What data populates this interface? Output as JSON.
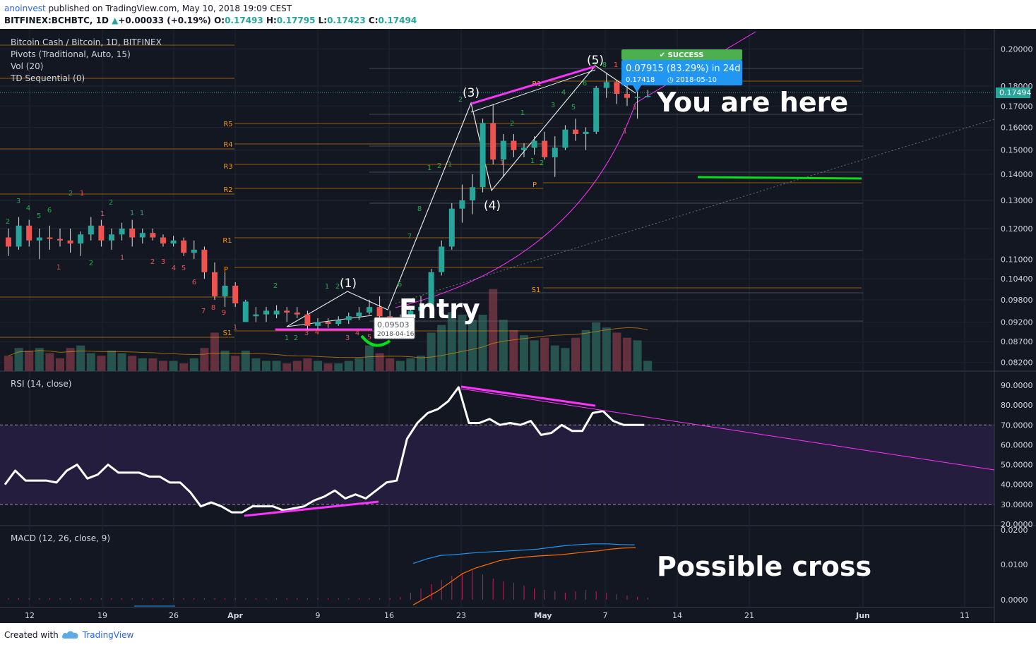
{
  "header": {
    "author": "anoinvest",
    "published": "published on TradingView.com, May 10, 2018 19:09 CEST",
    "symbol": "BITFINEX:BCHBTC, 1D",
    "change": "+0.00033 (+0.19%)",
    "ohlc": {
      "o_label": "O:",
      "o": "0.17493",
      "h_label": "H:",
      "h": "0.17795",
      "l_label": "L:",
      "l": "0.17423",
      "c_label": "C:",
      "c": "0.17494"
    }
  },
  "footer": {
    "created_with": "Created with",
    "brand": "TradingView"
  },
  "colors": {
    "background": "#131722",
    "up": "#26a69a",
    "down": "#ef5350",
    "annotation": "#ff33ff",
    "rsi": "#ffffff",
    "success": "#4caf50",
    "callout": "#2196f3",
    "pivot": "#ff9800"
  },
  "chart_data": [
    {
      "type": "candlestick",
      "pane": "price",
      "title": "Bitcoin Cash / Bitcoin, 1D, BITFINEX",
      "indicators": [
        "Pivots (Traditional, Auto, 15)",
        "Vol (20)",
        "TD Sequential (0)"
      ],
      "last_price": "0.17494",
      "y_ticks": [
        "0.20000",
        "0.18000",
        "0.17000",
        "0.16000",
        "0.15000",
        "0.14000",
        "0.13000",
        "0.12000",
        "0.11000",
        "0.10400",
        "0.09800",
        "0.09200",
        "0.08700",
        "0.08200"
      ],
      "y_scale": "log",
      "ylim": [
        0.08,
        0.205
      ],
      "x_ticks": [
        "12",
        "19",
        "26",
        "Apr",
        "9",
        "16",
        "23",
        "May",
        "7",
        "14",
        "21",
        "Jun",
        "11"
      ],
      "candles": [
        {
          "o": 0.117,
          "h": 0.12,
          "l": 0.111,
          "c": 0.114
        },
        {
          "o": 0.114,
          "h": 0.124,
          "l": 0.113,
          "c": 0.121
        },
        {
          "o": 0.121,
          "h": 0.123,
          "l": 0.114,
          "c": 0.116
        },
        {
          "o": 0.116,
          "h": 0.12,
          "l": 0.11,
          "c": 0.117
        },
        {
          "o": 0.117,
          "h": 0.121,
          "l": 0.113,
          "c": 0.1165
        },
        {
          "o": 0.1165,
          "h": 0.12,
          "l": 0.114,
          "c": 0.116
        },
        {
          "o": 0.116,
          "h": 0.12,
          "l": 0.112,
          "c": 0.115
        },
        {
          "o": 0.115,
          "h": 0.119,
          "l": 0.111,
          "c": 0.118
        },
        {
          "o": 0.118,
          "h": 0.124,
          "l": 0.116,
          "c": 0.121
        },
        {
          "o": 0.121,
          "h": 0.123,
          "l": 0.114,
          "c": 0.116
        },
        {
          "o": 0.116,
          "h": 0.12,
          "l": 0.113,
          "c": 0.118
        },
        {
          "o": 0.118,
          "h": 0.122,
          "l": 0.116,
          "c": 0.12
        },
        {
          "o": 0.12,
          "h": 0.123,
          "l": 0.114,
          "c": 0.117
        },
        {
          "o": 0.117,
          "h": 0.12,
          "l": 0.115,
          "c": 0.1185
        },
        {
          "o": 0.1185,
          "h": 0.12,
          "l": 0.116,
          "c": 0.117
        },
        {
          "o": 0.117,
          "h": 0.118,
          "l": 0.114,
          "c": 0.115
        },
        {
          "o": 0.115,
          "h": 0.1175,
          "l": 0.114,
          "c": 0.116
        },
        {
          "o": 0.116,
          "h": 0.117,
          "l": 0.111,
          "c": 0.112
        },
        {
          "o": 0.112,
          "h": 0.116,
          "l": 0.11,
          "c": 0.113
        },
        {
          "o": 0.113,
          "h": 0.114,
          "l": 0.104,
          "c": 0.106
        },
        {
          "o": 0.106,
          "h": 0.109,
          "l": 0.098,
          "c": 0.099
        },
        {
          "o": 0.099,
          "h": 0.106,
          "l": 0.096,
          "c": 0.102
        },
        {
          "o": 0.102,
          "h": 0.103,
          "l": 0.096,
          "c": 0.097
        },
        {
          "o": 0.092,
          "h": 0.098,
          "l": 0.092,
          "c": 0.0975
        },
        {
          "o": 0.0935,
          "h": 0.096,
          "l": 0.092,
          "c": 0.094
        },
        {
          "o": 0.094,
          "h": 0.096,
          "l": 0.092,
          "c": 0.095
        },
        {
          "o": 0.094,
          "h": 0.0965,
          "l": 0.093,
          "c": 0.095
        },
        {
          "o": 0.095,
          "h": 0.096,
          "l": 0.092,
          "c": 0.0945
        },
        {
          "o": 0.0945,
          "h": 0.096,
          "l": 0.093,
          "c": 0.094
        },
        {
          "o": 0.094,
          "h": 0.095,
          "l": 0.09,
          "c": 0.091
        },
        {
          "o": 0.091,
          "h": 0.093,
          "l": 0.09,
          "c": 0.092
        },
        {
          "o": 0.092,
          "h": 0.093,
          "l": 0.0905,
          "c": 0.0915
        },
        {
          "o": 0.0915,
          "h": 0.0935,
          "l": 0.091,
          "c": 0.0925
        },
        {
          "o": 0.0925,
          "h": 0.0945,
          "l": 0.0915,
          "c": 0.0935
        },
        {
          "o": 0.0935,
          "h": 0.096,
          "l": 0.0925,
          "c": 0.0945
        },
        {
          "o": 0.0945,
          "h": 0.098,
          "l": 0.094,
          "c": 0.096
        },
        {
          "o": 0.096,
          "h": 0.099,
          "l": 0.093,
          "c": 0.0935
        },
        {
          "o": 0.0935,
          "h": 0.095,
          "l": 0.09,
          "c": 0.0915
        },
        {
          "o": 0.0915,
          "h": 0.094,
          "l": 0.0895,
          "c": 0.093
        },
        {
          "o": 0.093,
          "h": 0.096,
          "l": 0.092,
          "c": 0.095
        },
        {
          "o": 0.095,
          "h": 0.099,
          "l": 0.094,
          "c": 0.096
        },
        {
          "o": 0.096,
          "h": 0.107,
          "l": 0.096,
          "c": 0.106
        },
        {
          "o": 0.106,
          "h": 0.116,
          "l": 0.105,
          "c": 0.114
        },
        {
          "o": 0.114,
          "h": 0.129,
          "l": 0.113,
          "c": 0.127
        },
        {
          "o": 0.127,
          "h": 0.136,
          "l": 0.122,
          "c": 0.13
        },
        {
          "o": 0.13,
          "h": 0.14,
          "l": 0.125,
          "c": 0.135
        },
        {
          "o": 0.135,
          "h": 0.164,
          "l": 0.133,
          "c": 0.162
        },
        {
          "o": 0.162,
          "h": 0.171,
          "l": 0.144,
          "c": 0.146
        },
        {
          "o": 0.146,
          "h": 0.157,
          "l": 0.139,
          "c": 0.154
        },
        {
          "o": 0.154,
          "h": 0.157,
          "l": 0.147,
          "c": 0.15
        },
        {
          "o": 0.15,
          "h": 0.153,
          "l": 0.147,
          "c": 0.151
        },
        {
          "o": 0.151,
          "h": 0.156,
          "l": 0.148,
          "c": 0.154
        },
        {
          "o": 0.154,
          "h": 0.158,
          "l": 0.146,
          "c": 0.147
        },
        {
          "o": 0.147,
          "h": 0.156,
          "l": 0.139,
          "c": 0.151
        },
        {
          "o": 0.151,
          "h": 0.161,
          "l": 0.15,
          "c": 0.159
        },
        {
          "o": 0.159,
          "h": 0.164,
          "l": 0.154,
          "c": 0.157
        },
        {
          "o": 0.157,
          "h": 0.16,
          "l": 0.15,
          "c": 0.158
        },
        {
          "o": 0.158,
          "h": 0.18,
          "l": 0.157,
          "c": 0.179
        },
        {
          "o": 0.179,
          "h": 0.187,
          "l": 0.174,
          "c": 0.182
        },
        {
          "o": 0.182,
          "h": 0.183,
          "l": 0.171,
          "c": 0.176
        },
        {
          "o": 0.176,
          "h": 0.181,
          "l": 0.17,
          "c": 0.174
        },
        {
          "o": 0.174,
          "h": 0.178,
          "l": 0.164,
          "c": 0.1745
        },
        {
          "o": 0.17493,
          "h": 0.17795,
          "l": 0.17423,
          "c": 0.17494
        }
      ],
      "pivots": [
        "R5",
        "R4",
        "R3",
        "R2",
        "R1",
        "P",
        "S1",
        "R1",
        "P",
        "S1"
      ],
      "annotations": [
        "(1)",
        "(3)",
        "(4)",
        "(5)",
        "Entry",
        "You are here",
        "SUCCESS",
        "0.07915 (83.29%) in 24d",
        "0.17418",
        "2018-05-10",
        "0.09503",
        "2018-04-16"
      ],
      "td_counts": [
        "2",
        "3",
        "4",
        "5",
        "6",
        "1",
        "2",
        "1",
        "2",
        "1",
        "2",
        "1",
        "1",
        "1",
        "2",
        "3",
        "4",
        "5",
        "6",
        "7",
        "8",
        "9",
        "1",
        "2",
        "1",
        "2",
        "3",
        "4",
        "1",
        "2",
        "3",
        "4",
        "5",
        "6",
        "7",
        "8",
        "1",
        "2",
        "1",
        "2",
        "1",
        "2",
        "1",
        "1",
        "2",
        "3",
        "4",
        "5",
        "6",
        "7",
        "8",
        "1",
        "1",
        "1"
      ]
    },
    {
      "type": "bar",
      "pane": "volume",
      "title": "Vol (20)",
      "values": [
        0.6,
        0.9,
        0.8,
        0.9,
        0.7,
        0.5,
        0.9,
        1.0,
        0.7,
        0.6,
        0.8,
        0.7,
        0.6,
        0.5,
        0.5,
        0.4,
        0.4,
        0.3,
        0.5,
        0.9,
        1.5,
        0.8,
        0.6,
        0.8,
        0.5,
        0.4,
        0.4,
        0.3,
        0.4,
        0.5,
        0.4,
        0.3,
        0.3,
        0.4,
        0.5,
        1.0,
        0.7,
        0.5,
        0.4,
        0.5,
        0.6,
        1.5,
        1.8,
        2.3,
        2.2,
        2.0,
        2.2,
        3.2,
        2.0,
        1.6,
        1.4,
        1.2,
        1.3,
        1.0,
        0.9,
        1.3,
        1.6,
        1.9,
        1.7,
        1.5,
        1.3,
        1.2,
        0.4
      ]
    },
    {
      "type": "line",
      "pane": "rsi",
      "title": "RSI (14, close)",
      "y_ticks": [
        "90.0000",
        "80.0000",
        "70.0000",
        "60.0000",
        "50.0000",
        "40.0000",
        "30.0000",
        "20.0000"
      ],
      "ylim": [
        20,
        90
      ],
      "values": [
        40,
        47,
        42,
        42,
        42,
        41,
        47,
        50,
        43,
        45,
        50,
        46,
        46,
        46,
        44,
        44,
        41,
        41,
        36,
        29,
        31,
        29,
        26,
        26,
        29,
        29,
        29,
        27,
        28,
        29,
        32,
        34,
        37,
        33,
        35,
        33,
        37,
        41,
        42,
        63,
        71,
        76,
        78,
        82,
        89,
        71,
        71,
        73,
        70,
        71,
        70,
        72,
        65,
        66,
        70,
        67,
        67,
        76,
        77,
        72,
        70,
        70,
        70
      ]
    },
    {
      "type": "line",
      "pane": "macd",
      "title": "MACD (12, 26, close, 9)",
      "y_ticks": [
        "0.0200",
        "0.0100",
        "0.0000"
      ],
      "series": [
        {
          "values": [
            0.0104,
            0.0117,
            0.0127,
            0.0129,
            0.0133,
            0.0136,
            0.0138,
            0.014,
            0.0142,
            0.0145,
            0.015,
            0.0155,
            0.0158,
            0.016,
            0.016,
            0.0158,
            0.0157
          ]
        },
        {
          "values": [
            -0.0015,
            0.0005,
            0.0025,
            0.005,
            0.0075,
            0.009,
            0.0101,
            0.0112,
            0.0118,
            0.0122,
            0.0125,
            0.0127,
            0.0129,
            0.0133,
            0.0137,
            0.014,
            0.0145,
            0.0148,
            0.0149
          ]
        }
      ],
      "annotation": "Possible cross"
    }
  ]
}
